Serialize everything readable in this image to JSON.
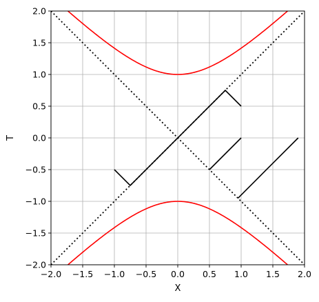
{
  "chart_data": {
    "type": "line",
    "title": "",
    "xlabel": "X",
    "ylabel": "T",
    "xlim": [
      -2.0,
      2.0
    ],
    "ylim": [
      -2.0,
      2.0
    ],
    "xticks": [
      -2.0,
      -1.5,
      -1.0,
      -0.5,
      0.0,
      0.5,
      1.0,
      1.5,
      2.0
    ],
    "yticks": [
      -2.0,
      -1.5,
      -1.0,
      -0.5,
      0.0,
      0.5,
      1.0,
      1.5,
      2.0
    ],
    "xtick_labels": [
      "−2.0",
      "−1.5",
      "−1.0",
      "−0.5",
      "0.0",
      "0.5",
      "1.0",
      "1.5",
      "2.0"
    ],
    "ytick_labels": [
      "−2.0",
      "−1.5",
      "−1.0",
      "−0.5",
      "0.0",
      "0.5",
      "1.0",
      "1.5",
      "2.0"
    ],
    "grid": true,
    "colors": {
      "hyperbola": "#ff0000",
      "light_cone": "#000000",
      "worldline": "#000000",
      "grid": "#b0b0b0"
    },
    "series": [
      {
        "kind": "hyperbola",
        "style": "solid",
        "color": "#ff0000",
        "equation": "T = sqrt(1 + X^2)"
      },
      {
        "kind": "hyperbola",
        "style": "solid",
        "color": "#ff0000",
        "equation": "T = -sqrt(1 + X^2)"
      },
      {
        "kind": "line",
        "style": "dotted",
        "color": "#000000",
        "points": [
          [
            -2.0,
            -2.0
          ],
          [
            2.0,
            2.0
          ]
        ]
      },
      {
        "kind": "line",
        "style": "dotted",
        "color": "#000000",
        "points": [
          [
            -2.0,
            2.0
          ],
          [
            2.0,
            -2.0
          ]
        ]
      },
      {
        "kind": "line",
        "style": "solid",
        "color": "#000000",
        "points": [
          [
            -1.0,
            -0.5
          ],
          [
            -0.75,
            -0.75
          ],
          [
            0.75,
            0.75
          ],
          [
            1.0,
            0.5
          ]
        ]
      },
      {
        "kind": "line",
        "style": "solid",
        "color": "#000000",
        "points": [
          [
            0.5,
            -0.5
          ],
          [
            1.0,
            0.0
          ]
        ]
      },
      {
        "kind": "line",
        "style": "solid",
        "color": "#000000",
        "points": [
          [
            0.95,
            -0.95
          ],
          [
            1.9,
            0.0
          ]
        ]
      }
    ]
  }
}
